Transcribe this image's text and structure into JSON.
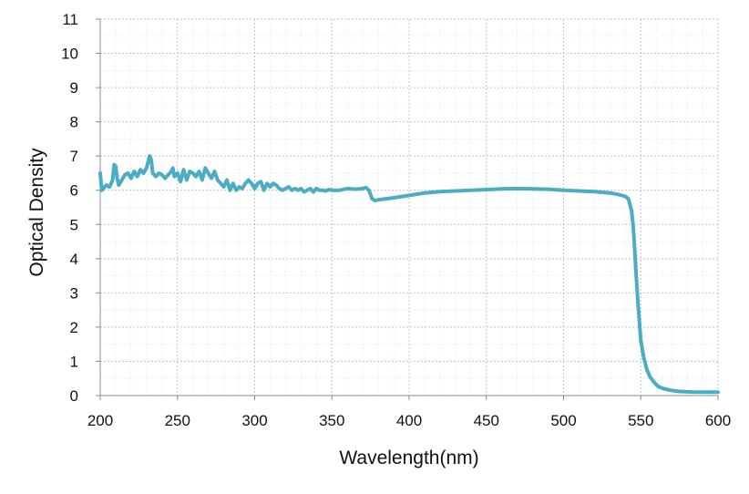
{
  "chart_data": {
    "type": "line",
    "title": "",
    "xlabel": "Wavelength(nm)",
    "ylabel": "Optical Density",
    "xlim": [
      200,
      600
    ],
    "ylim": [
      0,
      11
    ],
    "xticks": [
      "200",
      "250",
      "300",
      "350",
      "400",
      "450",
      "500",
      "550",
      "600"
    ],
    "yticks": [
      "0",
      "1",
      "2",
      "3",
      "4",
      "5",
      "6",
      "7",
      "8",
      "9",
      "10",
      "11"
    ],
    "grid": "dotted major and minor gridlines",
    "legend": "none",
    "line_color": "#4bacc6",
    "series": [
      {
        "x": [
          200,
          201,
          202,
          204,
          206,
          208,
          209,
          210,
          211,
          212,
          214,
          216,
          218,
          220,
          222,
          224,
          226,
          228,
          230,
          232,
          233,
          234,
          236,
          238,
          240,
          242,
          244,
          246,
          247,
          248,
          250,
          252,
          254,
          256,
          258,
          260,
          262,
          264,
          266,
          268,
          270,
          272,
          274,
          276,
          278,
          280,
          282,
          284,
          286,
          288,
          290,
          292,
          294,
          296,
          298,
          300,
          302,
          304,
          306,
          308,
          310,
          312,
          314,
          316,
          318,
          320,
          322,
          324,
          326,
          328,
          330,
          332,
          334,
          336,
          338,
          340,
          342,
          344,
          346,
          348,
          350,
          355,
          360,
          365,
          370,
          372,
          374,
          376,
          378,
          380,
          385,
          390,
          400,
          410,
          420,
          430,
          440,
          450,
          460,
          470,
          480,
          490,
          500,
          510,
          520,
          530,
          535,
          540,
          542,
          544,
          545,
          546,
          547,
          548,
          549,
          550,
          552,
          554,
          556,
          558,
          560,
          562,
          565,
          570,
          575,
          580,
          585,
          590,
          595,
          600
        ],
        "y": [
          6.5,
          6.0,
          6.05,
          6.15,
          6.1,
          6.3,
          6.75,
          6.7,
          6.35,
          6.15,
          6.3,
          6.45,
          6.5,
          6.35,
          6.55,
          6.4,
          6.6,
          6.5,
          6.65,
          7.0,
          6.9,
          6.5,
          6.4,
          6.5,
          6.45,
          6.35,
          6.45,
          6.55,
          6.65,
          6.4,
          6.5,
          6.25,
          6.6,
          6.3,
          6.55,
          6.5,
          6.4,
          6.55,
          6.3,
          6.65,
          6.5,
          6.35,
          6.55,
          6.3,
          6.2,
          6.1,
          6.3,
          6.0,
          6.2,
          6.0,
          6.1,
          6.05,
          6.2,
          6.3,
          6.2,
          6.05,
          6.2,
          6.25,
          6.0,
          6.2,
          6.1,
          6.2,
          6.15,
          6.05,
          6.0,
          6.05,
          6.1,
          6.0,
          6.05,
          6.0,
          6.05,
          5.95,
          6.0,
          6.05,
          5.95,
          6.05,
          6.0,
          6.0,
          5.98,
          6.02,
          6.0,
          6.0,
          6.05,
          6.03,
          6.05,
          6.08,
          6.0,
          5.75,
          5.7,
          5.72,
          5.75,
          5.78,
          5.85,
          5.92,
          5.96,
          5.98,
          6.0,
          6.02,
          6.04,
          6.05,
          6.04,
          6.03,
          6.0,
          5.98,
          5.96,
          5.92,
          5.88,
          5.82,
          5.75,
          5.4,
          5.0,
          4.3,
          3.5,
          2.8,
          2.2,
          1.6,
          1.1,
          0.75,
          0.55,
          0.42,
          0.32,
          0.25,
          0.2,
          0.15,
          0.12,
          0.11,
          0.1,
          0.1,
          0.1,
          0.1
        ]
      }
    ]
  }
}
